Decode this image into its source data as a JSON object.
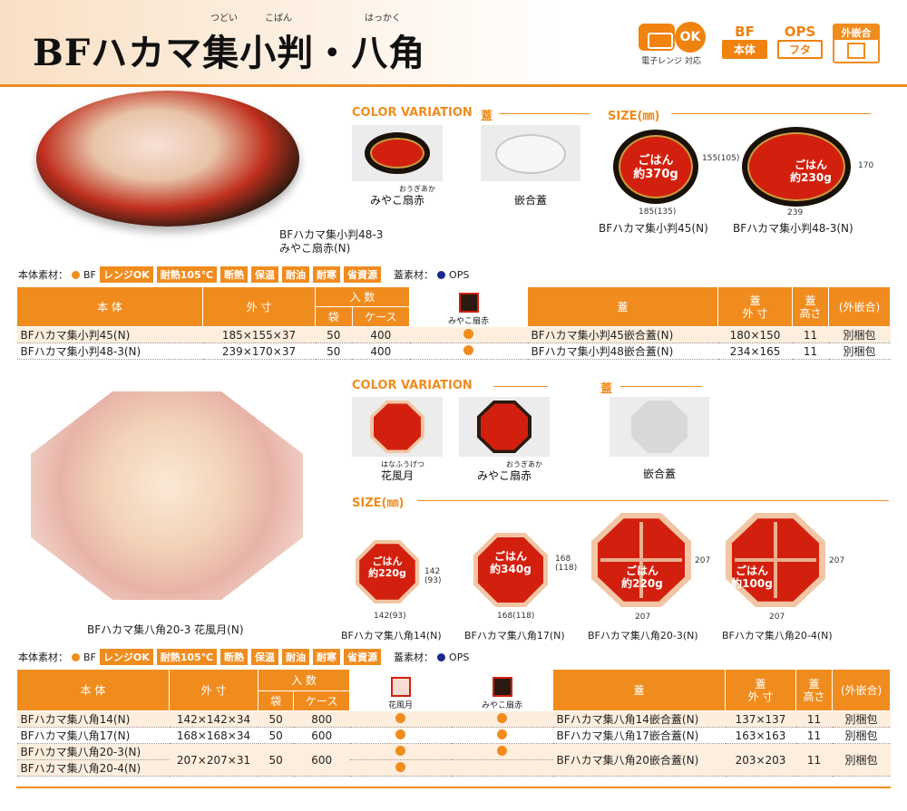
{
  "header": {
    "title": "BFハカマ集小判・八角",
    "ruby": [
      "つどい",
      "こばん",
      "はっかく"
    ],
    "badges": {
      "microwave_ok": "OK",
      "microwave_caption": "電子レンジ 対応",
      "bf_label": "BF",
      "bf_box": "本体",
      "ops_label": "OPS",
      "ops_box": "フタ",
      "fit_label": "外嵌合"
    }
  },
  "section1": {
    "photo_caption_1": "BFハカマ集小判48-3",
    "photo_caption_2": "みやこ扇赤(N)",
    "color_variation_label": "COLOR VARIATION",
    "lid_label": "蓋",
    "size_label": "SIZE(㎜)",
    "variant_name": "みやこ扇赤",
    "variant_ruby": "おうぎあか",
    "lid_name": "嵌合蓋",
    "trays": [
      {
        "name": "BFハカマ集小判45(N)",
        "label_1": "ごはん",
        "label_2": "約370g",
        "dim_w": "185(135)",
        "dim_h": "155(105)"
      },
      {
        "name": "BFハカマ集小判48-3(N)",
        "label_1": "ごはん",
        "label_2": "約230g",
        "dim_w": "239",
        "dim_h": "170"
      }
    ],
    "materials": {
      "body_label": "本体素材：",
      "body_material": "BF",
      "tags": [
        "レンジOK",
        "耐熱105℃",
        "断熱",
        "保温",
        "耐油",
        "耐寒",
        "省資源"
      ],
      "lid_label": "蓋素材：",
      "lid_material": "OPS"
    },
    "table": {
      "headers": {
        "body": "本 体",
        "size": "外 寸",
        "qty": "入 数",
        "bag": "袋",
        "case": "ケース",
        "color": "みやこ扇赤",
        "lid": "蓋",
        "lid_size": "蓋\n外 寸",
        "lid_height": "蓋\n高さ",
        "pack": "(外嵌合)"
      },
      "rows": [
        {
          "body": "BFハカマ集小判45(N)",
          "size": "185×155×37",
          "bag": "50",
          "case": "400",
          "lid": "BFハカマ集小判45嵌合蓋(N)",
          "lid_size": "180×150",
          "lid_height": "11",
          "pack": "別梱包"
        },
        {
          "body": "BFハカマ集小判48-3(N)",
          "size": "239×170×37",
          "bag": "50",
          "case": "400",
          "lid": "BFハカマ集小判48嵌合蓋(N)",
          "lid_size": "234×165",
          "lid_height": "11",
          "pack": "別梱包"
        }
      ]
    }
  },
  "section2": {
    "photo_caption": "BFハカマ集八角20-3 花風月(N)",
    "color_variation_label": "COLOR VARIATION",
    "lid_label": "蓋",
    "size_label": "SIZE(㎜)",
    "variant_1": "花風月",
    "variant_1_ruby": "はなふうげつ",
    "variant_2": "みやこ扇赤",
    "variant_2_ruby": "おうぎあか",
    "lid_name": "嵌合蓋",
    "trays": [
      {
        "name": "BFハカマ集八角14(N)",
        "label_1": "ごはん",
        "label_2": "約220g",
        "dim_w": "142(93)",
        "dim_h": "142\n(93)"
      },
      {
        "name": "BFハカマ集八角17(N)",
        "label_1": "ごはん",
        "label_2": "約340g",
        "dim_w": "168(118)",
        "dim_h": "168\n(118)"
      },
      {
        "name": "BFハカマ集八角20-3(N)",
        "label_1": "ごはん",
        "label_2": "約220g",
        "dim_w": "207",
        "dim_h": "207"
      },
      {
        "name": "BFハカマ集八角20-4(N)",
        "label_1": "ごはん",
        "label_2": "約100g",
        "dim_w": "207",
        "dim_h": "207"
      }
    ],
    "materials": {
      "body_label": "本体素材：",
      "body_material": "BF",
      "tags": [
        "レンジOK",
        "耐熱105℃",
        "断熱",
        "保温",
        "耐油",
        "耐寒",
        "省資源"
      ],
      "lid_label": "蓋素材：",
      "lid_material": "OPS"
    },
    "table": {
      "headers": {
        "body": "本 体",
        "size": "外 寸",
        "qty": "入 数",
        "bag": "袋",
        "case": "ケース",
        "color_1": "花風月",
        "color_2": "みやこ扇赤",
        "lid": "蓋",
        "lid_size": "蓋\n外 寸",
        "lid_height": "蓋\n高さ",
        "pack": "(外嵌合)"
      },
      "rows": [
        {
          "body": "BFハカマ集八角14(N)",
          "size": "142×142×34",
          "bag": "50",
          "case": "800",
          "lid": "BFハカマ集八角14嵌合蓋(N)",
          "lid_size": "137×137",
          "lid_height": "11",
          "pack": "別梱包"
        },
        {
          "body": "BFハカマ集八角17(N)",
          "size": "168×168×34",
          "bag": "50",
          "case": "600",
          "lid": "BFハカマ集八角17嵌合蓋(N)",
          "lid_size": "163×163",
          "lid_height": "11",
          "pack": "別梱包"
        },
        {
          "body_a": "BFハカマ集八角20-3(N)",
          "body_b": "BFハカマ集八角20-4(N)",
          "size": "207×207×31",
          "bag": "50",
          "case": "600",
          "lid": "BFハカマ集八角20嵌合蓋(N)",
          "lid_size": "203×203",
          "lid_height": "11",
          "pack": "別梱包"
        }
      ]
    }
  }
}
